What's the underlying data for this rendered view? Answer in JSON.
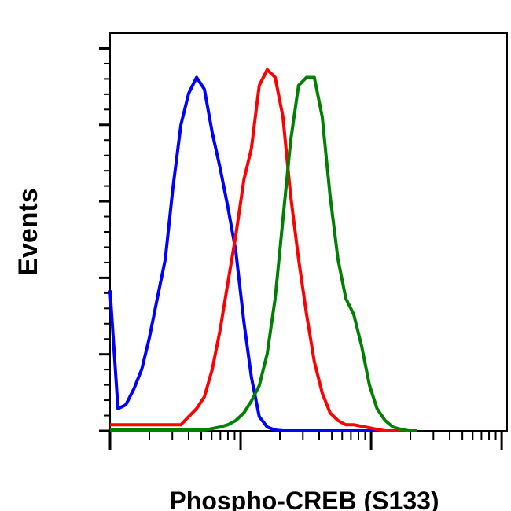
{
  "chart_data": {
    "type": "line",
    "x_label": "Phospho-CREB (S133)",
    "y_label": "Events",
    "x": [
      1.0,
      1.15,
      1.32,
      1.52,
      1.75,
      2.0,
      2.3,
      2.65,
      3.03,
      3.49,
      4.0,
      4.6,
      5.28,
      6.07,
      6.97,
      8.0,
      9.19,
      10.6,
      12.1,
      13.9,
      16.0,
      18.4,
      21.1,
      24.2,
      27.8,
      32.0,
      36.7,
      42.2,
      48.5,
      55.7,
      64.0,
      73.5,
      84.4,
      97.0,
      111,
      128,
      147,
      169,
      194,
      223
    ],
    "series": [
      {
        "color": "#0000ff",
        "values": [
          36.7,
          5.8,
          6.8,
          10.9,
          16.1,
          24.3,
          34.6,
          44.9,
          63.5,
          80,
          88.2,
          92.4,
          89.3,
          77.9,
          68.7,
          58.4,
          47,
          28.5,
          14,
          3.7,
          1,
          0.2,
          0,
          0,
          0,
          0,
          0,
          0,
          0,
          0,
          0,
          0,
          0,
          0,
          0,
          0,
          0,
          0,
          0,
          0
        ]
      },
      {
        "color": "#ff0000",
        "values": [
          1.6,
          1.6,
          1.6,
          1.6,
          1.6,
          1.6,
          1.6,
          1.6,
          1.6,
          1.6,
          3.7,
          5.8,
          8.9,
          16.1,
          26.4,
          38.8,
          51.1,
          65.6,
          73.8,
          90.3,
          94.4,
          92.4,
          82.1,
          61.4,
          44.9,
          30.5,
          18.1,
          9.9,
          4.7,
          2.7,
          1.6,
          1.6,
          1.2,
          0.8,
          0.4,
          0,
          0,
          0,
          0,
          0
        ]
      },
      {
        "color": "#008000",
        "values": [
          0.2,
          0.2,
          0.2,
          0.2,
          0.2,
          0.2,
          0.2,
          0.2,
          0.2,
          0.2,
          0.2,
          0.2,
          0.2,
          0.6,
          1,
          1.6,
          2.7,
          4.7,
          7.8,
          11.8,
          20.2,
          34.6,
          55.3,
          75.9,
          90.3,
          92.4,
          92.4,
          82.1,
          61.4,
          44.9,
          34.6,
          30.5,
          22.3,
          12,
          5.8,
          2.7,
          1,
          0.4,
          0,
          0
        ]
      }
    ],
    "xlog": true,
    "xlim": [
      1,
      1100
    ],
    "xticks": [
      1,
      10,
      100,
      1000
    ],
    "ylim": [
      0,
      104
    ],
    "yticks": [
      0,
      20,
      40,
      60,
      80,
      100
    ]
  }
}
